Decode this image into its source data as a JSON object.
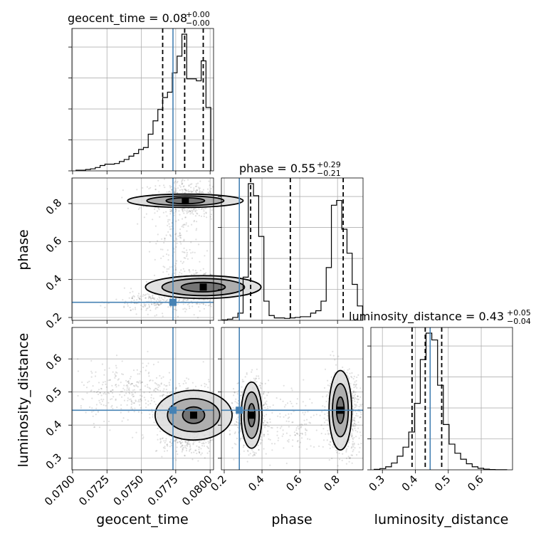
{
  "chart_data": {
    "type": "corner",
    "parameters": [
      "geocent_time",
      "phase",
      "luminosity_distance"
    ],
    "titles": [
      {
        "param": "geocent_time",
        "text": "geocent_time = 0.08",
        "sup": "+0.00",
        "sub": "−0.00"
      },
      {
        "param": "phase",
        "text": "phase = 0.55",
        "sup": "+0.29",
        "sub": "−0.21"
      },
      {
        "param": "luminosity_distance",
        "text": "luminosity_distance = 0.43",
        "sup": "+0.05",
        "sub": "−0.04"
      }
    ],
    "ranges": {
      "geocent_time": [
        0.06995,
        0.08025
      ],
      "phase": [
        0.185,
        0.935
      ],
      "luminosity_distance": [
        0.265,
        0.695
      ]
    },
    "ticks": {
      "geocent_time": [
        0.07,
        0.0725,
        0.075,
        0.0775,
        0.08
      ],
      "phase": [
        0.2,
        0.4,
        0.6,
        0.8
      ],
      "luminosity_distance": [
        0.3,
        0.4,
        0.5,
        0.6
      ]
    },
    "tick_labels": {
      "geocent_time": [
        "0.0700",
        "0.0725",
        "0.0750",
        "0.0775",
        "0.0800"
      ],
      "phase": [
        "0.2",
        "0.4",
        "0.6",
        "0.8"
      ],
      "luminosity_distance": [
        "0.3",
        "0.4",
        "0.5",
        "0.6"
      ]
    },
    "truths": {
      "geocent_time": 0.0773,
      "phase": 0.28,
      "luminosity_distance": 0.445
    },
    "quantiles": {
      "geocent_time": [
        0.07655,
        0.07815,
        0.0795
      ],
      "phase": [
        0.34,
        0.55,
        0.83
      ],
      "luminosity_distance": [
        0.39,
        0.43,
        0.48
      ]
    },
    "histograms": {
      "geocent_time": {
        "edges": [
          0.07025,
          0.0706,
          0.07095,
          0.0713,
          0.07165,
          0.072,
          0.07235,
          0.0727,
          0.07305,
          0.0734,
          0.07375,
          0.0741,
          0.07445,
          0.0748,
          0.07515,
          0.0755,
          0.07585,
          0.0762,
          0.07655,
          0.0769,
          0.07725,
          0.0776,
          0.07795,
          0.0783,
          0.07865,
          0.079,
          0.07935,
          0.0797,
          0.08005
        ],
        "counts": [
          1,
          1,
          2,
          3,
          5,
          8,
          10,
          10,
          11,
          14,
          17,
          22,
          26,
          32,
          35,
          55,
          75,
          92,
          110,
          118,
          147,
          172,
          205,
          138,
          138,
          135,
          165,
          95
        ]
      },
      "phase": {
        "edges": [
          0.19,
          0.2175,
          0.245,
          0.2725,
          0.3,
          0.3275,
          0.355,
          0.3825,
          0.41,
          0.4375,
          0.465,
          0.4925,
          0.52,
          0.5475,
          0.575,
          0.6025,
          0.63,
          0.6575,
          0.685,
          0.7125,
          0.74,
          0.7675,
          0.795,
          0.8225,
          0.85,
          0.8775,
          0.905,
          0.9325
        ],
        "counts": [
          2,
          5,
          12,
          30,
          180,
          570,
          520,
          350,
          80,
          20,
          10,
          10,
          8,
          10,
          12,
          15,
          15,
          30,
          40,
          80,
          220,
          480,
          500,
          380,
          280,
          150,
          60
        ]
      },
      "luminosity_distance": {
        "edges": [
          0.275,
          0.2925,
          0.31,
          0.3275,
          0.345,
          0.3625,
          0.38,
          0.3975,
          0.415,
          0.4325,
          0.45,
          0.4675,
          0.485,
          0.5025,
          0.52,
          0.5375,
          0.555,
          0.5725,
          0.59,
          0.6075,
          0.625,
          0.6425,
          0.66,
          0.6775
        ],
        "counts": [
          3,
          8,
          20,
          45,
          90,
          150,
          250,
          440,
          730,
          905,
          860,
          560,
          300,
          170,
          110,
          70,
          40,
          20,
          10,
          4,
          2,
          1,
          1
        ]
      }
    },
    "axis_labels": {
      "phase_y": "phase",
      "luminosity_distance_y": "luminosity_distance",
      "geocent_time_x": "geocent_time",
      "phase_x": "phase",
      "luminosity_distance_x": "luminosity_distance"
    },
    "grid": true
  }
}
